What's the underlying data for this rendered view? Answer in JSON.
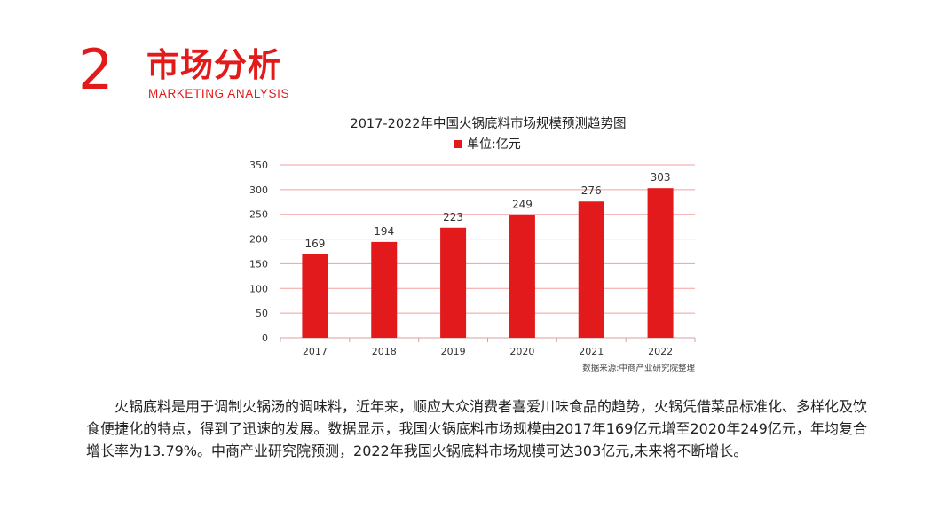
{
  "header": {
    "section_number": "2",
    "title": "市场分析",
    "subtitle": "MARKETING ANALYSIS"
  },
  "colors": {
    "accent": "#e21a1a",
    "bar": "#e31a1c",
    "gridline": "#f0a0a0",
    "text": "#222222"
  },
  "chart_data": {
    "type": "bar",
    "title": "2017-2022年中国火锅底料市场规模预测趋势图",
    "categories": [
      "2017",
      "2018",
      "2019",
      "2020",
      "2021",
      "2022"
    ],
    "series": [
      {
        "name": "单位:亿元",
        "values": [
          169,
          194,
          223,
          249,
          276,
          303
        ]
      }
    ],
    "ylim": [
      0,
      350
    ],
    "yticks": [
      0,
      50,
      100,
      150,
      200,
      250,
      300,
      350
    ],
    "grid": true,
    "legend_position": "top",
    "data_labels": true,
    "source": "数据来源:中商产业研究院整理"
  },
  "body": {
    "paragraph": "火锅底料是用于调制火锅汤的调味料，近年来，顺应大众消费者喜爱川味食品的趋势，火锅凭借菜品标准化、多样化及饮食便捷化的特点，得到了迅速的发展。数据显示，我国火锅底料市场规模由2017年169亿元增至2020年249亿元，年均复合增长率为13.79%。中商产业研究院预测，2022年我国火锅底料市场规模可达303亿元,未来将不断增长。"
  }
}
